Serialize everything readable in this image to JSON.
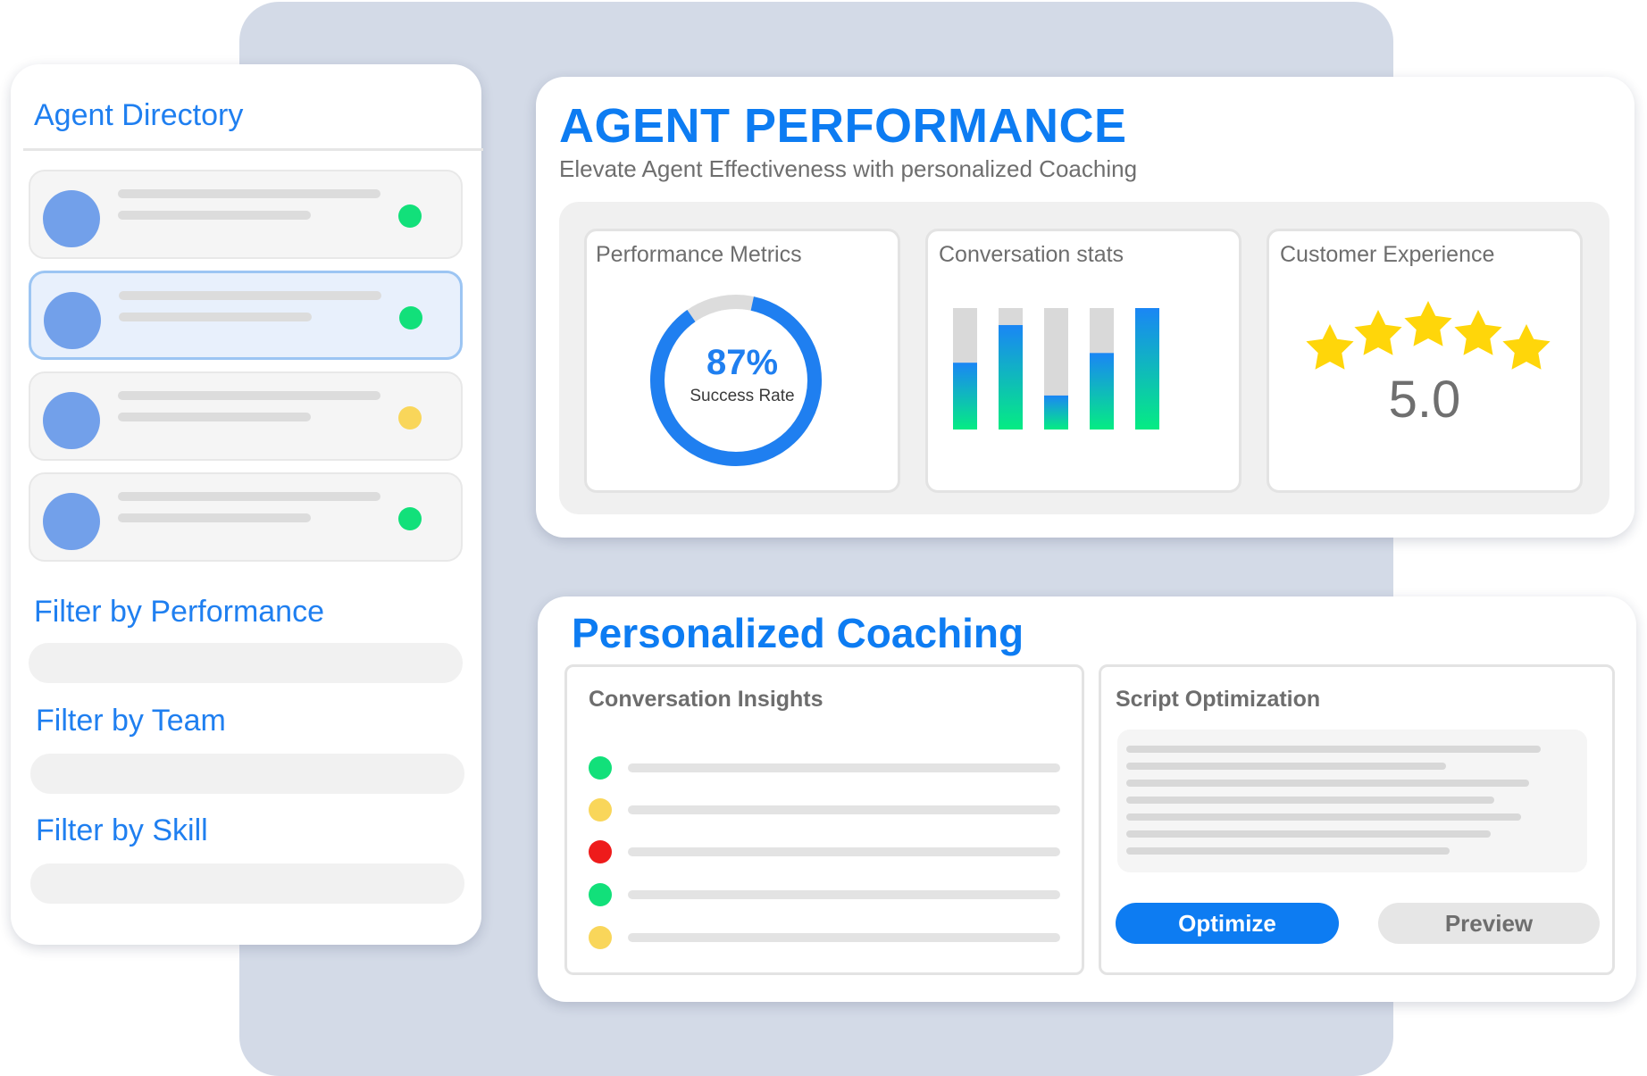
{
  "directory": {
    "title": "Agent Directory",
    "agents": [
      {
        "status": "online",
        "status_color": "#12e07a",
        "selected": false
      },
      {
        "status": "online",
        "status_color": "#12e07a",
        "selected": true
      },
      {
        "status": "away",
        "status_color": "#f9d65a",
        "selected": false
      },
      {
        "status": "online",
        "status_color": "#12e07a",
        "selected": false
      }
    ],
    "filters": [
      {
        "label": "Filter by Performance"
      },
      {
        "label": "Filter by Team"
      },
      {
        "label": "Filter by Skill"
      }
    ]
  },
  "performance": {
    "title": "AGENT PERFORMANCE",
    "subtitle": "Elevate Agent Effectiveness with personalized Coaching",
    "metrics": {
      "title": "Performance Metrics",
      "value_label": "87%",
      "value": 0.87,
      "caption": "Success Rate"
    },
    "conversation": {
      "title": "Conversation stats"
    },
    "experience": {
      "title": "Customer Experience",
      "rating_label": "5.0",
      "stars": 5
    }
  },
  "chart_data": {
    "type": "bar",
    "title": "Conversation stats",
    "categories": [
      "",
      "",
      "",
      "",
      ""
    ],
    "values": [
      55,
      86,
      28,
      63,
      100
    ],
    "ylim": [
      0,
      100
    ],
    "grid": false
  },
  "coaching": {
    "title": "Personalized Coaching",
    "insights": {
      "title": "Conversation Insights",
      "items": [
        {
          "color": "#12e07a"
        },
        {
          "color": "#f9d65a"
        },
        {
          "color": "#ee1b1b"
        },
        {
          "color": "#12e07a"
        },
        {
          "color": "#f9d65a"
        }
      ]
    },
    "script": {
      "title": "Script Optimization",
      "optimize_label": "Optimize",
      "preview_label": "Preview"
    }
  },
  "colors": {
    "accent": "#0d7cf2",
    "bar_gradient_top": "#1a86f5",
    "bar_gradient_bottom": "#05ec83",
    "bar_track": "#d9d9d9",
    "star": "#ffd60a"
  }
}
